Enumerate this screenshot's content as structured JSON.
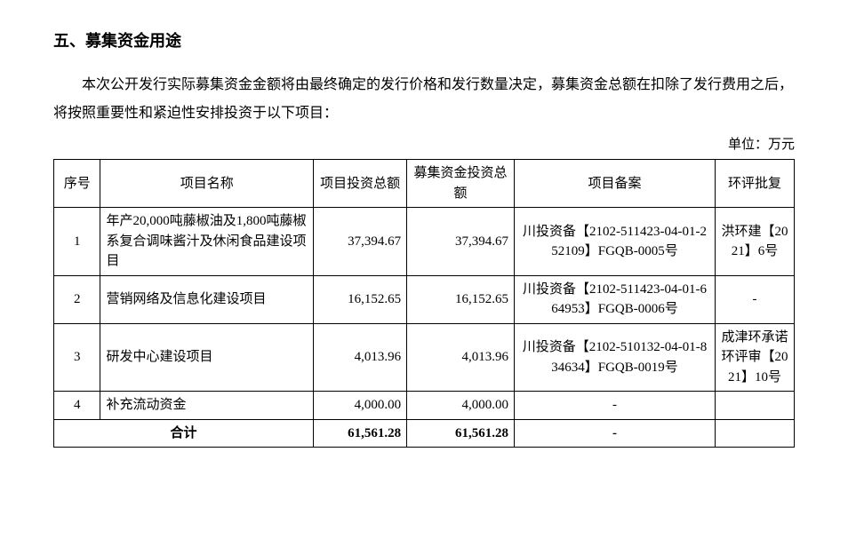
{
  "heading": "五、募集资金用途",
  "paragraph": "本次公开发行实际募集资金金额将由最终确定的发行价格和发行数量决定，募集资金总额在扣除了发行费用之后，将按照重要性和紧迫性安排投资于以下项目：",
  "unit_label": "单位：万元",
  "table": {
    "columns": [
      "序号",
      "项目名称",
      "项目投资总额",
      "募集资金投资总额",
      "项目备案",
      "环评批复"
    ],
    "rows": [
      {
        "idx": "1",
        "name": "年产20,000吨藤椒油及1,800吨藤椒系复合调味酱汁及休闲食品建设项目",
        "inv": "37,394.67",
        "fund": "37,394.67",
        "filing": "川投资备【2102-511423-04-01-252109】FGQB-0005号",
        "eia": "洪环建【2021】6号"
      },
      {
        "idx": "2",
        "name": "营销网络及信息化建设项目",
        "inv": "16,152.65",
        "fund": "16,152.65",
        "filing": "川投资备【2102-511423-04-01-664953】FGQB-0006号",
        "eia": "-"
      },
      {
        "idx": "3",
        "name": "研发中心建设项目",
        "inv": "4,013.96",
        "fund": "4,013.96",
        "filing": "川投资备【2102-510132-04-01-834634】FGQB-0019号",
        "eia": "成津环承诺环评审【2021】10号"
      },
      {
        "idx": "4",
        "name": "补充流动资金",
        "inv": "4,000.00",
        "fund": "4,000.00",
        "filing": "-",
        "eia": ""
      }
    ],
    "total": {
      "label": "合计",
      "inv": "61,561.28",
      "fund": "61,561.28",
      "filing": "-",
      "eia": ""
    }
  }
}
